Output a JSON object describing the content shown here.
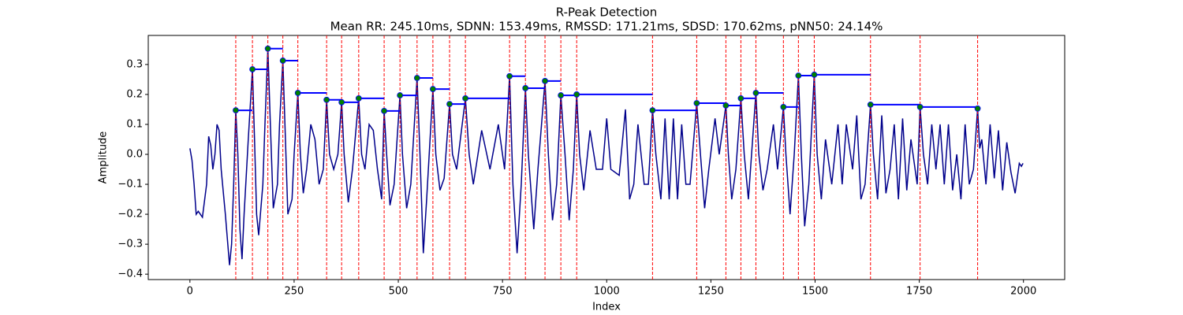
{
  "chart_data": {
    "type": "line",
    "title": "R-Peak Detection",
    "subtitle": "Mean RR: 245.10ms, SDNN: 153.49ms, RMSSD: 171.21ms, SDSD: 170.62ms, pNN50: 24.14%",
    "xlabel": "Index",
    "ylabel": "Amplitude",
    "xlim": [
      -99.95,
      2098.95
    ],
    "ylim": [
      -0.418,
      0.397
    ],
    "xticks": [
      0,
      250,
      500,
      750,
      1000,
      1250,
      1500,
      1750,
      2000
    ],
    "yticks": [
      {
        "value": -0.4,
        "label": "−0.4"
      },
      {
        "value": -0.3,
        "label": "−0.3"
      },
      {
        "value": -0.2,
        "label": "−0.2"
      },
      {
        "value": -0.1,
        "label": "−0.1"
      },
      {
        "value": 0,
        "label": "0.0"
      },
      0.1,
      0.2,
      0.3
    ],
    "signal": {
      "color": "#00008b",
      "x": [
        0,
        5,
        10,
        15,
        20,
        30,
        40,
        45,
        50,
        55,
        60,
        65,
        70,
        75,
        85,
        95,
        100,
        105,
        110,
        115,
        120,
        125,
        130,
        140,
        150,
        155,
        160,
        165,
        175,
        180,
        187,
        193,
        200,
        210,
        215,
        223,
        228,
        235,
        245,
        250,
        259,
        265,
        272,
        280,
        290,
        300,
        310,
        320,
        328,
        335,
        345,
        355,
        364,
        370,
        380,
        390,
        405,
        412,
        420,
        430,
        440,
        450,
        460,
        466,
        472,
        480,
        490,
        504,
        510,
        520,
        530,
        545,
        552,
        560,
        568,
        583,
        590,
        600,
        610,
        623,
        630,
        640,
        661,
        670,
        680,
        700,
        720,
        740,
        755,
        767,
        775,
        785,
        795,
        805,
        812,
        825,
        835,
        852,
        860,
        870,
        880,
        890,
        900,
        910,
        920,
        928,
        935,
        945,
        960,
        975,
        990,
        1000,
        1010,
        1030,
        1045,
        1055,
        1065,
        1075,
        1090,
        1100,
        1110,
        1118,
        1130,
        1140,
        1150,
        1160,
        1170,
        1180,
        1190,
        1200,
        1216,
        1225,
        1235,
        1245,
        1260,
        1270,
        1286,
        1292,
        1300,
        1310,
        1322,
        1330,
        1340,
        1358,
        1365,
        1375,
        1385,
        1400,
        1410,
        1424,
        1430,
        1440,
        1450,
        1460,
        1467,
        1475,
        1485,
        1498,
        1505,
        1515,
        1525,
        1540,
        1555,
        1565,
        1575,
        1590,
        1600,
        1610,
        1620,
        1633,
        1640,
        1650,
        1660,
        1670,
        1680,
        1690,
        1700,
        1710,
        1720,
        1730,
        1745,
        1752,
        1760,
        1770,
        1780,
        1790,
        1800,
        1810,
        1820,
        1830,
        1840,
        1850,
        1860,
        1870,
        1880,
        1890,
        1895,
        1900,
        1910,
        1920,
        1930,
        1940,
        1950,
        1960,
        1970,
        1980,
        1990,
        1995,
        1999
      ],
      "values": [
        0.02,
        -0.02,
        -0.1,
        -0.2,
        -0.19,
        -0.21,
        -0.1,
        0.06,
        0.03,
        -0.05,
        0.0,
        0.1,
        0.08,
        -0.05,
        -0.2,
        -0.37,
        -0.3,
        -0.1,
        0.147,
        0.0,
        -0.25,
        -0.35,
        -0.2,
        0.05,
        0.284,
        0.05,
        -0.2,
        -0.27,
        -0.1,
        0.1,
        0.353,
        0.1,
        -0.18,
        -0.1,
        0.1,
        0.313,
        0.1,
        -0.2,
        -0.15,
        0.0,
        0.205,
        0.0,
        -0.13,
        -0.05,
        0.1,
        0.05,
        -0.1,
        -0.05,
        0.182,
        0.0,
        -0.05,
        0.0,
        0.174,
        0.0,
        -0.16,
        -0.05,
        0.187,
        0.0,
        -0.05,
        0.1,
        0.08,
        -0.05,
        -0.15,
        0.145,
        0.0,
        -0.17,
        -0.1,
        0.197,
        0.0,
        -0.18,
        -0.1,
        0.255,
        0.0,
        -0.33,
        -0.15,
        0.218,
        0.0,
        -0.12,
        -0.08,
        0.168,
        0.0,
        -0.05,
        0.187,
        0.0,
        -0.1,
        0.08,
        -0.05,
        0.1,
        -0.05,
        0.261,
        -0.1,
        -0.33,
        -0.1,
        0.221,
        0.0,
        -0.25,
        -0.05,
        0.245,
        0.0,
        -0.22,
        -0.1,
        0.197,
        0.0,
        -0.22,
        -0.05,
        0.2,
        0.0,
        -0.12,
        0.08,
        -0.05,
        -0.05,
        0.12,
        -0.05,
        -0.07,
        0.15,
        -0.15,
        -0.1,
        0.1,
        -0.1,
        -0.1,
        0.147,
        0.0,
        -0.15,
        0.12,
        -0.15,
        0.12,
        -0.15,
        0.1,
        -0.1,
        -0.1,
        0.171,
        0.0,
        -0.18,
        -0.05,
        0.12,
        0.0,
        0.163,
        0.0,
        -0.15,
        -0.05,
        0.187,
        0.0,
        -0.15,
        0.205,
        0.0,
        -0.12,
        -0.05,
        0.1,
        -0.05,
        0.158,
        0.0,
        -0.2,
        0.0,
        0.263,
        0.0,
        -0.24,
        -0.1,
        0.266,
        0.0,
        -0.15,
        0.05,
        -0.1,
        0.1,
        -0.1,
        0.1,
        -0.05,
        0.13,
        -0.15,
        -0.1,
        0.166,
        0.0,
        -0.15,
        0.13,
        -0.13,
        -0.05,
        0.1,
        -0.15,
        0.12,
        -0.12,
        0.05,
        -0.1,
        0.158,
        0.0,
        -0.1,
        0.1,
        -0.05,
        0.1,
        -0.1,
        0.1,
        -0.12,
        0.0,
        -0.15,
        0.1,
        -0.1,
        -0.05,
        0.153,
        0.02,
        0.05,
        -0.1,
        0.1,
        -0.08,
        0.08,
        -0.12,
        0.04,
        -0.06,
        -0.13,
        -0.03,
        -0.04,
        -0.03
      ]
    },
    "peaks": {
      "color": "#008000",
      "line_color": "#0000ff",
      "rule_color": "#ff0000",
      "x": [
        110,
        150,
        187,
        223,
        259,
        328,
        364,
        405,
        466,
        504,
        545,
        583,
        623,
        661,
        767,
        805,
        852,
        890,
        928,
        1110,
        1216,
        1286,
        1322,
        1358,
        1424,
        1460,
        1498,
        1633,
        1752,
        1890
      ],
      "values": [
        0.147,
        0.284,
        0.353,
        0.313,
        0.205,
        0.182,
        0.174,
        0.187,
        0.145,
        0.197,
        0.255,
        0.218,
        0.168,
        0.187,
        0.261,
        0.221,
        0.245,
        0.197,
        0.2,
        0.147,
        0.171,
        0.163,
        0.187,
        0.205,
        0.158,
        0.263,
        0.266,
        0.166,
        0.158,
        0.153
      ]
    }
  }
}
